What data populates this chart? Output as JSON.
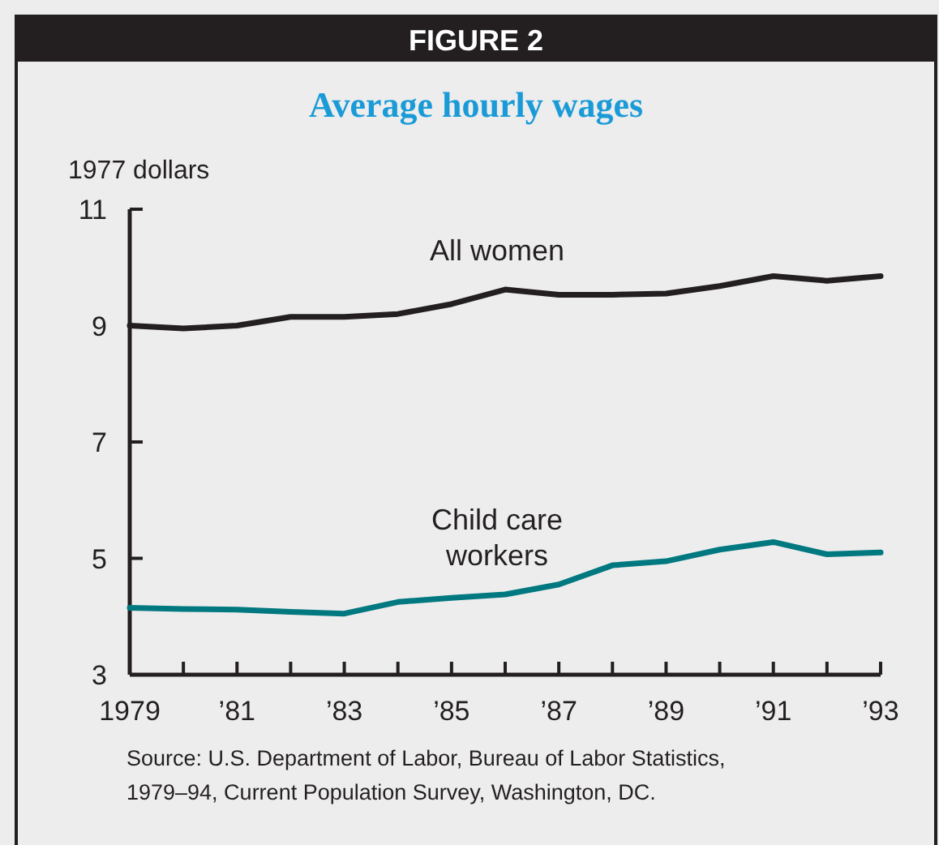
{
  "chart_data": {
    "type": "line",
    "title": "Average hourly wages",
    "ylabel": "1977 dollars",
    "annotations": [
      "FIGURE 2",
      "Source: U.S. Department of Labor, Bureau of Labor Statistics, 1979–94, Current Population Survey, Washington, DC."
    ],
    "x": [
      1979,
      1980,
      1981,
      1982,
      1983,
      1984,
      1985,
      1986,
      1987,
      1988,
      1989,
      1990,
      1991,
      1992,
      1993
    ],
    "series": [
      {
        "name": "All women",
        "color": "#231f20",
        "values": [
          9.0,
          8.95,
          9.0,
          9.15,
          9.15,
          9.2,
          9.37,
          9.62,
          9.53,
          9.53,
          9.55,
          9.68,
          9.85,
          9.77,
          9.85
        ]
      },
      {
        "name": "Child care workers",
        "color": "#007880",
        "values": [
          4.15,
          4.13,
          4.12,
          4.08,
          4.05,
          4.25,
          4.32,
          4.38,
          4.55,
          4.88,
          4.95,
          5.15,
          5.28,
          5.07,
          5.1
        ]
      }
    ],
    "xlim": [
      1979,
      1993
    ],
    "xticks": [
      1979,
      {
        "value": 1980,
        "label": null
      },
      {
        "value": 1981,
        "label": "’81"
      },
      {
        "value": 1982,
        "label": null
      },
      {
        "value": 1983,
        "label": "’83"
      },
      {
        "value": 1984,
        "label": null
      },
      {
        "value": 1985,
        "label": "’85"
      },
      {
        "value": 1986,
        "label": null
      },
      {
        "value": 1987,
        "label": "’87"
      },
      {
        "value": 1988,
        "label": null
      },
      {
        "value": 1989,
        "label": "’89"
      },
      {
        "value": 1990,
        "label": null
      },
      {
        "value": 1991,
        "label": "’91"
      },
      {
        "value": 1992,
        "label": null
      },
      {
        "value": 1993,
        "label": "’93"
      }
    ],
    "ylim": [
      3,
      11
    ],
    "yticks": [
      3,
      5,
      7,
      9,
      11
    ],
    "grid": false,
    "line_style": "solid",
    "marker": "none"
  }
}
